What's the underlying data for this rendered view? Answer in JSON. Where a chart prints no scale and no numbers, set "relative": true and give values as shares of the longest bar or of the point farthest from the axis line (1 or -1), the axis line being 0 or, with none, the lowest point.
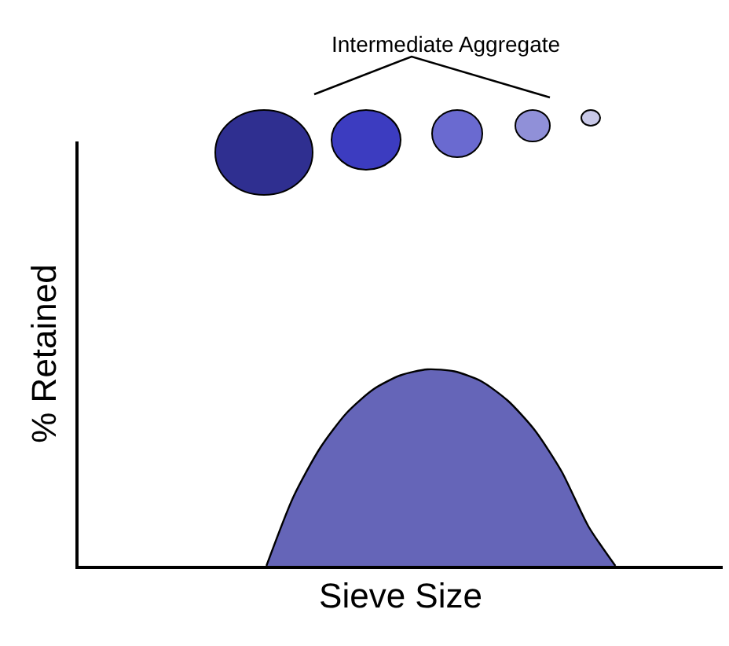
{
  "chart_data": {
    "type": "area",
    "relative": true,
    "xlabel": "Sieve Size",
    "ylabel": "% Retained",
    "annotations": [
      "Intermediate Aggregate"
    ],
    "categories": [
      null,
      null,
      null,
      null,
      null,
      null,
      null,
      null,
      null,
      null,
      null,
      null,
      null,
      null,
      null,
      null,
      null,
      null,
      null,
      null,
      null,
      null,
      null,
      null,
      null
    ],
    "series": [
      {
        "color": "#6565b8",
        "values": [
          null,
          null,
          null,
          null,
          null,
          null,
          null,
          0,
          0.35,
          0.6,
          0.78,
          0.9,
          0.97,
          1,
          0.99,
          0.94,
          0.84,
          0.69,
          0.48,
          0.2,
          0,
          null,
          null,
          null,
          null
        ]
      }
    ]
  }
}
